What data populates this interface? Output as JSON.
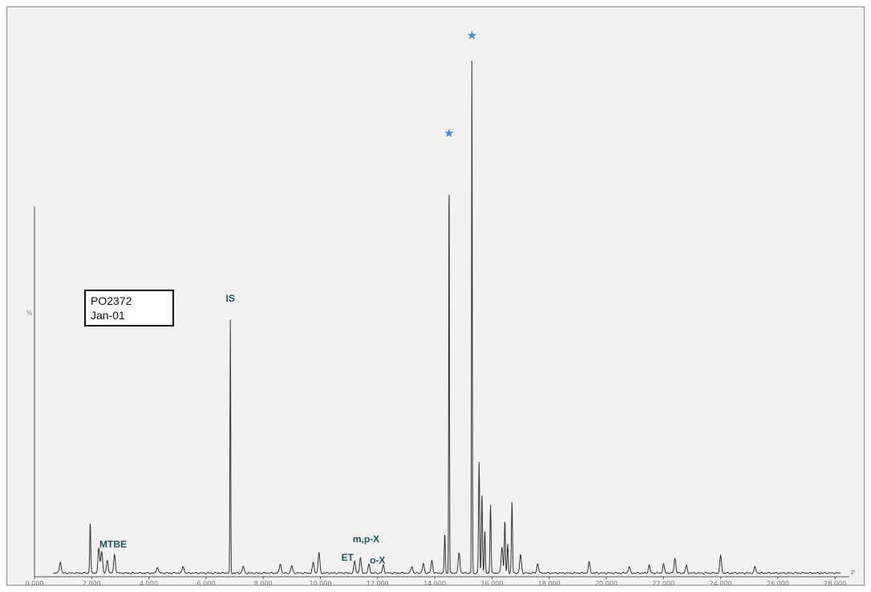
{
  "chart_data": {
    "type": "line",
    "title": "",
    "xlabel": "",
    "ylabel": "",
    "xlim": [
      0,
      28.5
    ],
    "ylim": [
      0,
      100
    ],
    "x_ticks": [
      "0.000",
      "2.000",
      "4.000",
      "6.000",
      "8.000",
      "10.000",
      "12.000",
      "14.000",
      "16.000",
      "18.000",
      "20.000",
      "22.000",
      "24.000",
      "26.000",
      "28.000"
    ],
    "y_axis_label": "%",
    "end_marker": "P",
    "grid": false,
    "baseline": 0.7,
    "peaks": [
      {
        "x": 0.9,
        "y": 2.2
      },
      {
        "x": 1.95,
        "y": 9.5
      },
      {
        "x": 2.25,
        "y": 4.6
      },
      {
        "x": 2.35,
        "y": 4.2
      },
      {
        "x": 2.55,
        "y": 2.4
      },
      {
        "x": 2.8,
        "y": 3.5
      },
      {
        "x": 4.3,
        "y": 1.2
      },
      {
        "x": 5.2,
        "y": 1.3
      },
      {
        "x": 6.85,
        "y": 48.0
      },
      {
        "x": 7.3,
        "y": 1.3
      },
      {
        "x": 8.6,
        "y": 1.8
      },
      {
        "x": 9.0,
        "y": 1.4
      },
      {
        "x": 9.75,
        "y": 2.0
      },
      {
        "x": 9.95,
        "y": 3.8
      },
      {
        "x": 11.2,
        "y": 2.2
      },
      {
        "x": 11.4,
        "y": 2.8
      },
      {
        "x": 11.7,
        "y": 1.6
      },
      {
        "x": 12.2,
        "y": 1.5
      },
      {
        "x": 13.2,
        "y": 1.3
      },
      {
        "x": 13.6,
        "y": 1.8
      },
      {
        "x": 13.9,
        "y": 2.3
      },
      {
        "x": 14.35,
        "y": 7.5
      },
      {
        "x": 14.5,
        "y": 79.0
      },
      {
        "x": 14.85,
        "y": 3.8
      },
      {
        "x": 15.3,
        "y": 99.0
      },
      {
        "x": 15.55,
        "y": 21.0
      },
      {
        "x": 15.65,
        "y": 15.0
      },
      {
        "x": 15.75,
        "y": 8.0
      },
      {
        "x": 15.95,
        "y": 13.0
      },
      {
        "x": 16.35,
        "y": 5.0
      },
      {
        "x": 16.45,
        "y": 10.0
      },
      {
        "x": 16.55,
        "y": 5.5
      },
      {
        "x": 16.7,
        "y": 13.5
      },
      {
        "x": 17.0,
        "y": 3.5
      },
      {
        "x": 17.6,
        "y": 1.8
      },
      {
        "x": 19.4,
        "y": 2.0
      },
      {
        "x": 20.8,
        "y": 1.2
      },
      {
        "x": 21.5,
        "y": 1.5
      },
      {
        "x": 22.0,
        "y": 1.7
      },
      {
        "x": 22.4,
        "y": 2.8
      },
      {
        "x": 22.8,
        "y": 1.4
      },
      {
        "x": 24.0,
        "y": 3.2
      },
      {
        "x": 25.2,
        "y": 1.2
      }
    ],
    "annotations": [
      {
        "text": "MTBE",
        "x": 2.75,
        "y": 5.5
      },
      {
        "text": "IS",
        "x": 6.85,
        "y": 52.0
      },
      {
        "text": "ET",
        "x": 10.95,
        "y": 3.0
      },
      {
        "text": "m,p-X",
        "x": 11.6,
        "y": 6.5
      },
      {
        "text": "o-X",
        "x": 12.0,
        "y": 2.5
      }
    ],
    "markers": [
      {
        "symbol": "★",
        "x": 14.5,
        "y": 83.0
      },
      {
        "symbol": "★",
        "x": 15.3,
        "y": 101.5
      }
    ]
  },
  "sample_box": {
    "line1": "PO2372",
    "line2": "Jan-01"
  }
}
